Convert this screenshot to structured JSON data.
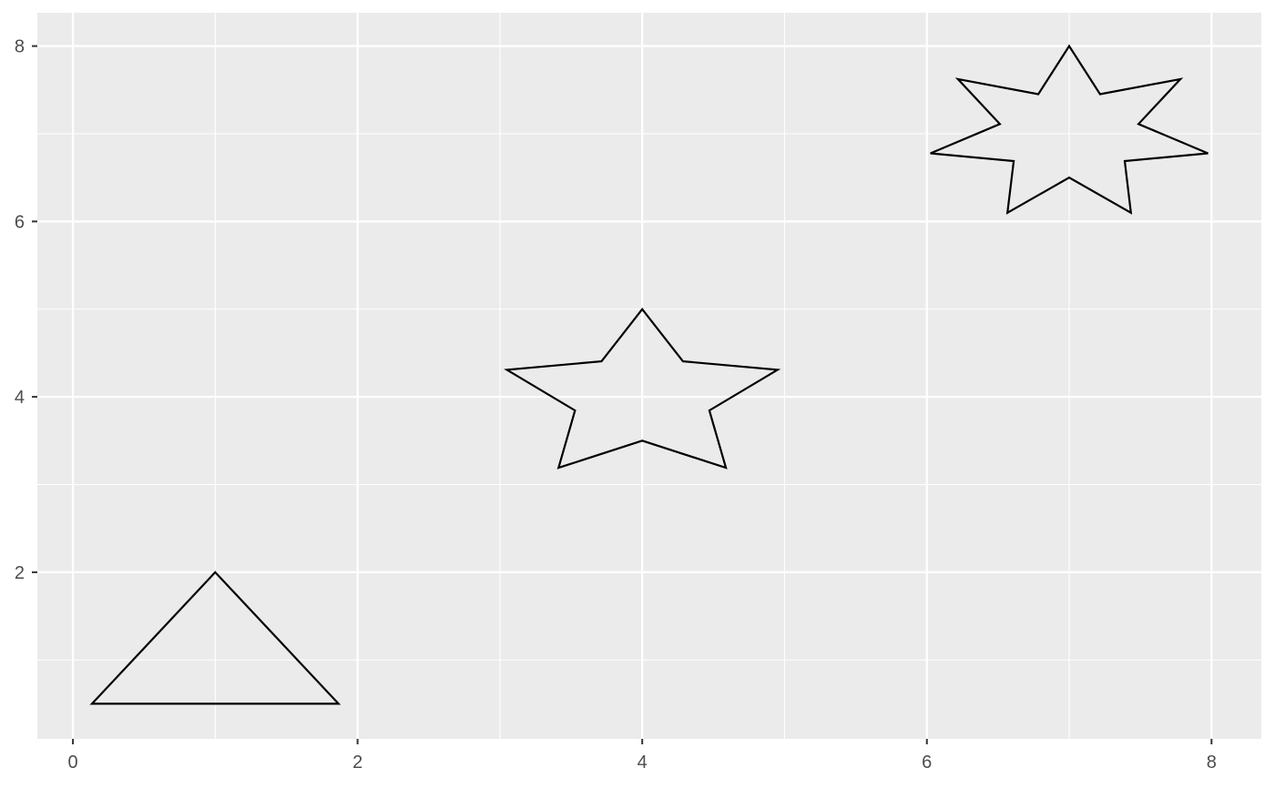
{
  "chart_data": {
    "type": "scatter",
    "title": "",
    "xlabel": "",
    "ylabel": "",
    "xlim": [
      -0.25,
      8.35
    ],
    "ylim": [
      0.1,
      8.38
    ],
    "grid": true,
    "legend": "none",
    "x_ticks": [
      0,
      2,
      4,
      6,
      8
    ],
    "y_ticks": [
      2,
      4,
      6,
      8
    ],
    "x_tick_labels": [
      "0",
      "2",
      "4",
      "6",
      "8"
    ],
    "y_tick_labels": [
      "2",
      "4",
      "6",
      "8"
    ],
    "x_minor": [
      1,
      3,
      5,
      7
    ],
    "y_minor": [
      1,
      3,
      5,
      7
    ],
    "colors": {
      "panel": "#ebebeb",
      "grid": "#ffffff",
      "outline": "#000000",
      "ticks": "#333333"
    },
    "shapes": [
      {
        "name": "triangle",
        "points": [
          [
            1,
            2
          ],
          [
            1.866,
            0.5
          ],
          [
            0.134,
            0.5
          ]
        ]
      },
      {
        "name": "five-point-star",
        "points": [
          [
            4,
            5
          ],
          [
            4.286,
            4.405
          ],
          [
            4.951,
            4.309
          ],
          [
            4.472,
            3.845
          ],
          [
            4.588,
            3.191
          ],
          [
            4,
            3.5
          ],
          [
            3.412,
            3.191
          ],
          [
            3.528,
            3.845
          ],
          [
            3.049,
            4.309
          ],
          [
            3.714,
            4.405
          ]
        ]
      },
      {
        "name": "seven-point-star",
        "points": [
          [
            7,
            8
          ],
          [
            7.217,
            7.451
          ],
          [
            7.782,
            7.624
          ],
          [
            7.487,
            7.111
          ],
          [
            7.975,
            6.777
          ],
          [
            7.39,
            6.689
          ],
          [
            7.434,
            6.099
          ],
          [
            7,
            6.5
          ],
          [
            6.566,
            6.099
          ],
          [
            6.61,
            6.689
          ],
          [
            6.025,
            6.777
          ],
          [
            6.513,
            7.111
          ],
          [
            6.218,
            7.624
          ],
          [
            6.783,
            7.451
          ]
        ]
      }
    ]
  }
}
